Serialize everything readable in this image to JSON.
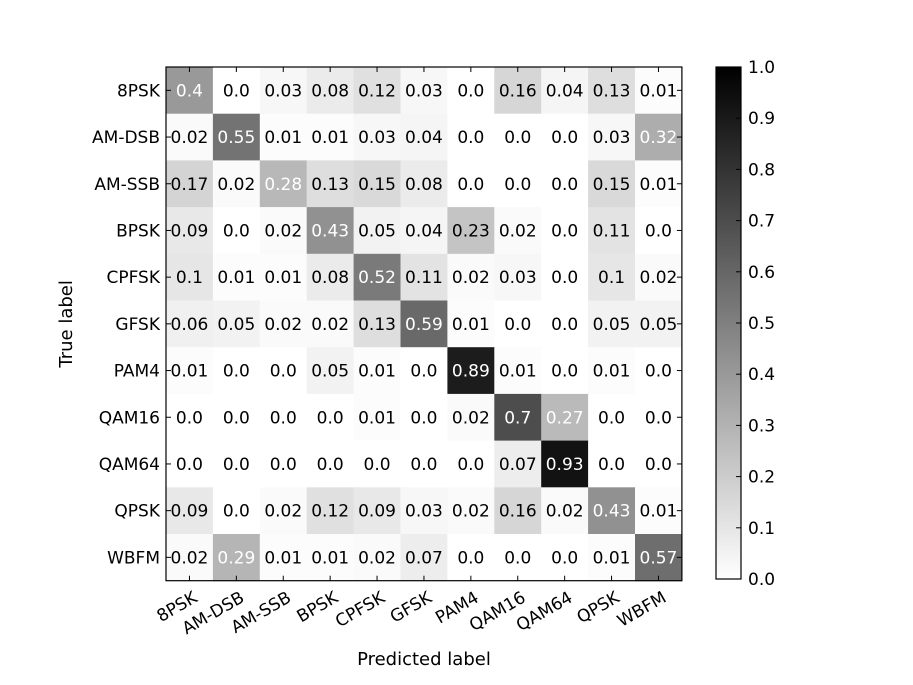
{
  "chart_data": {
    "type": "heatmap",
    "title": "",
    "xlabel": "Predicted label",
    "ylabel": "True label",
    "x_categories": [
      "8PSK",
      "AM-DSB",
      "AM-SSB",
      "BPSK",
      "CPFSK",
      "GFSK",
      "PAM4",
      "QAM16",
      "QAM64",
      "QPSK",
      "WBFM"
    ],
    "y_categories": [
      "8PSK",
      "AM-DSB",
      "AM-SSB",
      "BPSK",
      "CPFSK",
      "GFSK",
      "PAM4",
      "QAM16",
      "QAM64",
      "QPSK",
      "WBFM"
    ],
    "values": [
      [
        0.4,
        0.0,
        0.03,
        0.08,
        0.12,
        0.03,
        0.0,
        0.16,
        0.04,
        0.13,
        0.01
      ],
      [
        0.02,
        0.55,
        0.01,
        0.01,
        0.03,
        0.04,
        0.0,
        0.0,
        0.0,
        0.03,
        0.32
      ],
      [
        0.17,
        0.02,
        0.28,
        0.13,
        0.15,
        0.08,
        0.0,
        0.0,
        0.0,
        0.15,
        0.01
      ],
      [
        0.09,
        0.0,
        0.02,
        0.43,
        0.05,
        0.04,
        0.23,
        0.02,
        0.0,
        0.11,
        0.0
      ],
      [
        0.1,
        0.01,
        0.01,
        0.08,
        0.52,
        0.11,
        0.02,
        0.03,
        0.0,
        0.1,
        0.02
      ],
      [
        0.06,
        0.05,
        0.02,
        0.02,
        0.13,
        0.59,
        0.01,
        0.0,
        0.0,
        0.05,
        0.05
      ],
      [
        0.01,
        0.0,
        0.0,
        0.05,
        0.01,
        0.0,
        0.89,
        0.01,
        0.0,
        0.01,
        0.0
      ],
      [
        0.0,
        0.0,
        0.0,
        0.0,
        0.01,
        0.0,
        0.02,
        0.7,
        0.27,
        0.0,
        0.0
      ],
      [
        0.0,
        0.0,
        0.0,
        0.0,
        0.0,
        0.0,
        0.0,
        0.07,
        0.93,
        0.0,
        0.0
      ],
      [
        0.09,
        0.0,
        0.02,
        0.12,
        0.09,
        0.03,
        0.02,
        0.16,
        0.02,
        0.43,
        0.01
      ],
      [
        0.02,
        0.29,
        0.01,
        0.01,
        0.02,
        0.07,
        0.0,
        0.0,
        0.0,
        0.01,
        0.57
      ]
    ],
    "value_labels": [
      [
        "0.4",
        "0.0",
        "0.03",
        "0.08",
        "0.12",
        "0.03",
        "0.0",
        "0.16",
        "0.04",
        "0.13",
        "0.01"
      ],
      [
        "0.02",
        "0.55",
        "0.01",
        "0.01",
        "0.03",
        "0.04",
        "0.0",
        "0.0",
        "0.0",
        "0.03",
        "0.32"
      ],
      [
        "0.17",
        "0.02",
        "0.28",
        "0.13",
        "0.15",
        "0.08",
        "0.0",
        "0.0",
        "0.0",
        "0.15",
        "0.01"
      ],
      [
        "0.09",
        "0.0",
        "0.02",
        "0.43",
        "0.05",
        "0.04",
        "0.23",
        "0.02",
        "0.0",
        "0.11",
        "0.0"
      ],
      [
        "0.1",
        "0.01",
        "0.01",
        "0.08",
        "0.52",
        "0.11",
        "0.02",
        "0.03",
        "0.0",
        "0.1",
        "0.02"
      ],
      [
        "0.06",
        "0.05",
        "0.02",
        "0.02",
        "0.13",
        "0.59",
        "0.01",
        "0.0",
        "0.0",
        "0.05",
        "0.05"
      ],
      [
        "0.01",
        "0.0",
        "0.0",
        "0.05",
        "0.01",
        "0.0",
        "0.89",
        "0.01",
        "0.0",
        "0.01",
        "0.0"
      ],
      [
        "0.0",
        "0.0",
        "0.0",
        "0.0",
        "0.01",
        "0.0",
        "0.02",
        "0.7",
        "0.27",
        "0.0",
        "0.0"
      ],
      [
        "0.0",
        "0.0",
        "0.0",
        "0.0",
        "0.0",
        "0.0",
        "0.0",
        "0.07",
        "0.93",
        "0.0",
        "0.0"
      ],
      [
        "0.09",
        "0.0",
        "0.02",
        "0.12",
        "0.09",
        "0.03",
        "0.02",
        "0.16",
        "0.02",
        "0.43",
        "0.01"
      ],
      [
        "0.02",
        "0.29",
        "0.01",
        "0.01",
        "0.02",
        "0.07",
        "0.0",
        "0.0",
        "0.0",
        "0.01",
        "0.57"
      ]
    ],
    "colormap": "Greys",
    "color_low": "#ffffff",
    "color_high": "#000000",
    "text_color_dark_cells": "#ffffff",
    "text_color_light_cells": "#000000",
    "colorbar": {
      "range": [
        0.0,
        1.0
      ],
      "ticks": [
        "0.0",
        "0.1",
        "0.2",
        "0.3",
        "0.4",
        "0.5",
        "0.6",
        "0.7",
        "0.8",
        "0.9",
        "1.0"
      ]
    },
    "grid": false
  }
}
